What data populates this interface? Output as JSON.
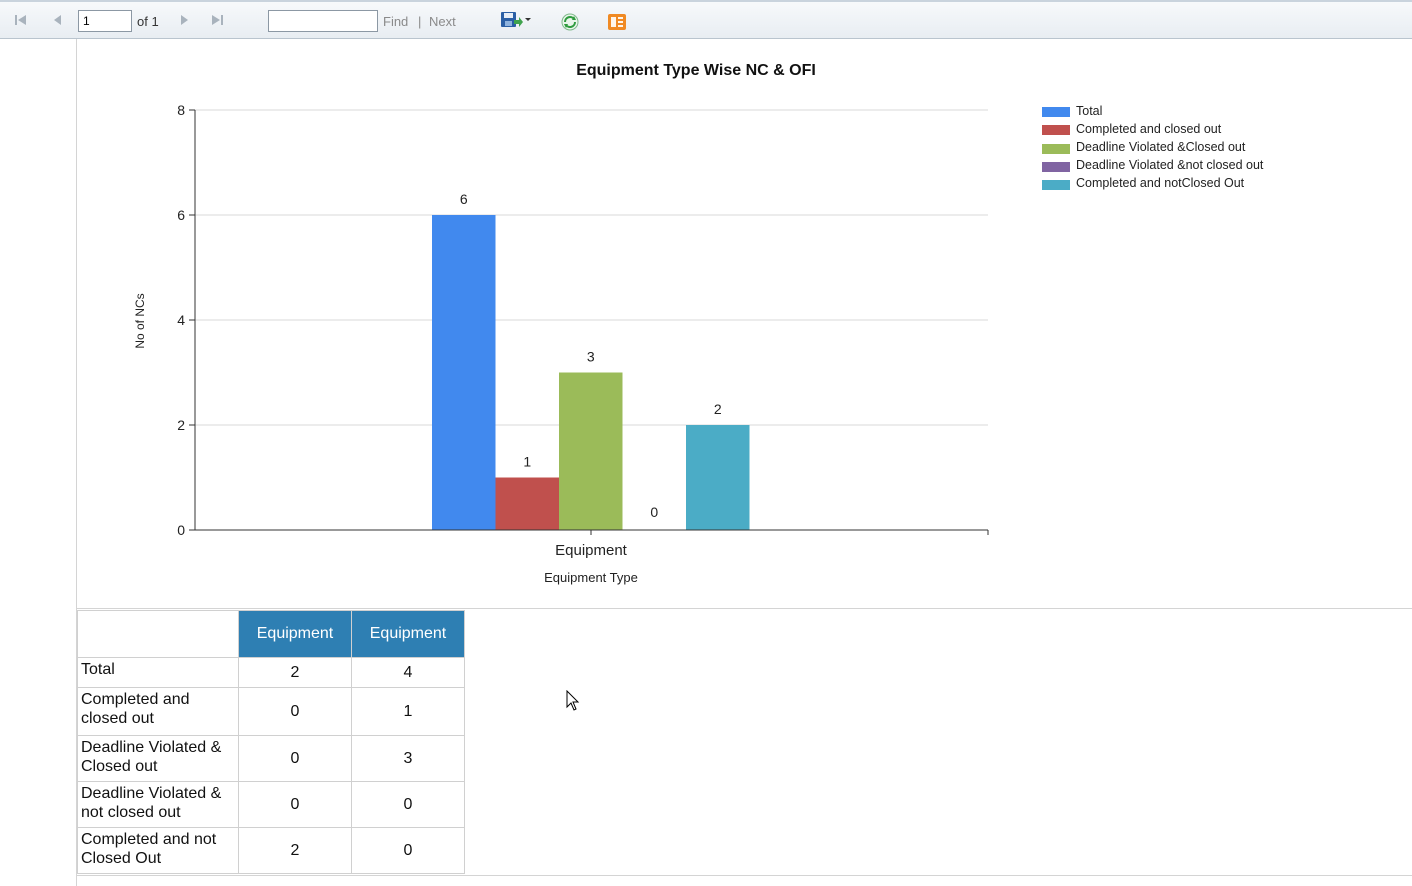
{
  "toolbar": {
    "page_value": "1",
    "of_label": "of 1",
    "find_value": "",
    "find_label": "Find",
    "separator": "|",
    "next_label": "Next",
    "icons": [
      "first-page-icon",
      "prev-page-icon",
      "next-page-icon",
      "last-page-icon",
      "export-save-icon",
      "refresh-icon",
      "print-layout-icon"
    ]
  },
  "chart_data": {
    "type": "bar",
    "title": "Equipment Type Wise NC & OFI",
    "xlabel": "Equipment Type",
    "ylabel": "No of NCs",
    "categories": [
      "Equipment"
    ],
    "ylim": [
      0,
      8
    ],
    "yticks": [
      0,
      2,
      4,
      6,
      8
    ],
    "grid": true,
    "legend_position": "right",
    "series": [
      {
        "name": "Total",
        "values": [
          6
        ],
        "color": "#4189ee"
      },
      {
        "name": "Completed and closed out",
        "values": [
          1
        ],
        "color": "#c0504d"
      },
      {
        "name": "Deadline Violated &Closed out",
        "values": [
          3
        ],
        "color": "#9bbb59"
      },
      {
        "name": "Deadline Violated &not closed out",
        "values": [
          0
        ],
        "color": "#8064a2"
      },
      {
        "name": "Completed and notClosed Out",
        "values": [
          2
        ],
        "color": "#4bacc6"
      }
    ]
  },
  "table": {
    "headers": [
      "Equipment",
      "Equipment"
    ],
    "rows": [
      {
        "label": "Total",
        "values": [
          "2",
          "4"
        ]
      },
      {
        "label": "Completed and closed out",
        "values": [
          "0",
          "1"
        ]
      },
      {
        "label": "Deadline Violated & Closed out",
        "values": [
          "0",
          "3"
        ]
      },
      {
        "label": "Deadline Violated & not closed out",
        "values": [
          "0",
          "0"
        ]
      },
      {
        "label": "Completed and not Closed Out",
        "values": [
          "2",
          "0"
        ]
      }
    ]
  }
}
